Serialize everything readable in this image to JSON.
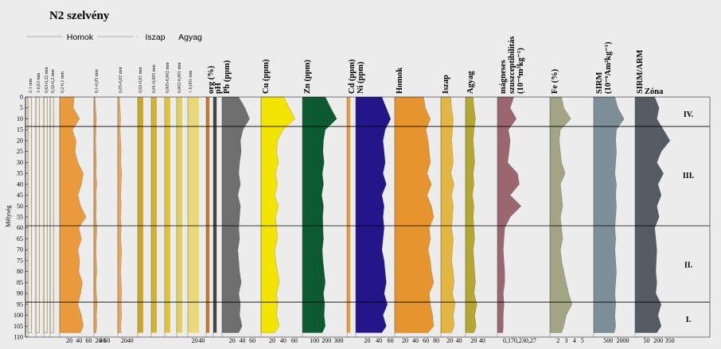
{
  "title": "N2 szelvény",
  "y_axis": {
    "label": "Mélység",
    "min": 0,
    "max": 110,
    "ticks": [
      0,
      5,
      10,
      15,
      20,
      25,
      30,
      35,
      40,
      45,
      50,
      55,
      60,
      65,
      70,
      75,
      80,
      85,
      90,
      95,
      100,
      105,
      110
    ]
  },
  "groups": [
    {
      "label": "Homok",
      "from": 0,
      "to": 6
    },
    {
      "label": "Iszap",
      "from": 7,
      "to": 9
    },
    {
      "label": "Agyag",
      "from": 10,
      "to": 11
    }
  ],
  "columns": [
    {
      "label": "2-1 mm",
      "color": "#f2ead0",
      "outline": "#444",
      "style": "sub"
    },
    {
      "label": "1-0,63 mm",
      "color": "#f2ead0",
      "outline": "#444",
      "style": "sub"
    },
    {
      "label": "0,63-0,32 mm",
      "color": "#f2ead0",
      "outline": "#444",
      "style": "sub"
    },
    {
      "label": "0,32-0,2 mm",
      "color": "#f2ead0",
      "outline": "#444",
      "style": "sub"
    },
    {
      "label": "0,2-0,1 mm",
      "color": "#e89a3c",
      "style": "sub",
      "ticks": [
        "20",
        "40",
        "60"
      ]
    },
    {
      "label": "0,1-0,05 mm",
      "color": "#e6a04e",
      "style": "sub",
      "ticks": [
        "20",
        "40",
        "60"
      ]
    },
    {
      "label": "0,05-0,02 mm",
      "color": "#eaa65a",
      "style": "sub",
      "ticks": [
        "20",
        "40"
      ]
    },
    {
      "label": "0,02-0,01 mm",
      "color": "#c9a628",
      "style": "sub"
    },
    {
      "label": "0,01-0,005 mm",
      "color": "#d2b232",
      "style": "sub"
    },
    {
      "label": "0,005-0,002 mm",
      "color": "#dfc33c",
      "style": "sub"
    },
    {
      "label": "0,002-0,001 mm",
      "color": "#e1cf5c",
      "style": "sub"
    },
    {
      "label": "< 0,001 mm",
      "color": "#e8d878",
      "style": "sub",
      "ticks": [
        "20",
        "40"
      ]
    },
    {
      "label": "org (%)",
      "color": "#c8782a",
      "style": "head"
    },
    {
      "label": "pH",
      "color": "#444444",
      "style": "head"
    },
    {
      "label": "Pb (ppm)",
      "color": "#6e6e6e",
      "style": "head",
      "ticks": [
        "20",
        "40",
        "60"
      ]
    },
    {
      "label": "Cu (ppm)",
      "color": "#f3e400",
      "style": "head",
      "ticks": [
        "20",
        "40",
        "60"
      ]
    },
    {
      "label": "Zn (ppm)",
      "color": "#0e5a30",
      "style": "head",
      "ticks": [
        "100",
        "200",
        "300"
      ]
    },
    {
      "label": "Cd (ppm)",
      "color": "#e89a3c",
      "style": "head"
    },
    {
      "label": "Ni (ppm)",
      "color": "#23158a",
      "style": "head",
      "ticks": [
        "20",
        "40",
        "60"
      ]
    },
    {
      "label": "Homok",
      "color": "#e6942e",
      "style": "head",
      "ticks": [
        "20",
        "40",
        "60",
        "80"
      ]
    },
    {
      "label": "Iszap",
      "color": "#e3b640",
      "style": "head",
      "ticks": [
        "20",
        "40"
      ]
    },
    {
      "label": "Agyag",
      "color": "#b6a730",
      "style": "head",
      "ticks": [
        "20",
        "40"
      ]
    },
    {
      "label": "mágneses szuszceptibilitás (10⁻⁸m³kg⁻¹)",
      "color": "#9a6670",
      "style": "multi",
      "ticks": [
        "0,17",
        "0,23",
        "0,27"
      ]
    },
    {
      "label": "Fe (%)",
      "color": "#a2a484",
      "style": "head",
      "ticks": [
        "2",
        "3",
        "4",
        "5"
      ]
    },
    {
      "label": "SIRM (10⁻⁶Am²kg⁻¹)",
      "color": "#7c8e98",
      "style": "multi",
      "ticks": [
        "500",
        "2000"
      ]
    },
    {
      "label": "SIRM/ARM",
      "color": "#545b62",
      "style": "head",
      "ticks": [
        "50",
        "200",
        "350"
      ]
    }
  ],
  "zone_header": "Zóna",
  "zones": [
    {
      "label": "IV.",
      "depth": 8
    },
    {
      "label": "III.",
      "depth": 36
    },
    {
      "label": "II.",
      "depth": 77
    },
    {
      "label": "I.",
      "depth": 102
    }
  ],
  "zone_boundaries": [
    13.5,
    59,
    94
  ],
  "chart_data": {
    "type": "area",
    "title": "N2 szelvény",
    "ylabel": "Mélység",
    "ylim": [
      0,
      110
    ],
    "y_reversed": true,
    "grid": false,
    "depth": [
      0,
      5,
      10,
      15,
      20,
      25,
      30,
      35,
      40,
      45,
      50,
      55,
      60,
      65,
      70,
      75,
      80,
      85,
      90,
      95,
      100,
      105,
      108
    ],
    "series": [
      {
        "name": "0,2-0,1 mm",
        "values": [
          32,
          30,
          44,
          28,
          36,
          34,
          40,
          52,
          48,
          40,
          46,
          58,
          42,
          48,
          40,
          44,
          42,
          50,
          46,
          40,
          48,
          52,
          46
        ]
      },
      {
        "name": "0,1-0,05 mm",
        "values": [
          6,
          8,
          12,
          10,
          8,
          10,
          12,
          10,
          14,
          10,
          12,
          10,
          14,
          12,
          10,
          12,
          14,
          10,
          12,
          16,
          12,
          14,
          10
        ]
      },
      {
        "name": "0,05-0,02 mm",
        "values": [
          6,
          8,
          10,
          8,
          10,
          12,
          10,
          14,
          12,
          10,
          12,
          10,
          12,
          10,
          14,
          12,
          10,
          12,
          14,
          12,
          14,
          10,
          12
        ]
      },
      {
        "name": "Pb (ppm)",
        "values": [
          40,
          55,
          66,
          50,
          44,
          46,
          42,
          40,
          44,
          38,
          44,
          42,
          40,
          42,
          38,
          40,
          42,
          46,
          40,
          44,
          42,
          48,
          40
        ]
      },
      {
        "name": "Cu (ppm)",
        "values": [
          50,
          62,
          74,
          48,
          36,
          34,
          38,
          32,
          36,
          30,
          38,
          32,
          34,
          36,
          30,
          32,
          36,
          40,
          34,
          36,
          34,
          40,
          30
        ]
      },
      {
        "name": "Zn (ppm)",
        "values": [
          190,
          235,
          285,
          190,
          175,
          170,
          180,
          165,
          175,
          160,
          175,
          168,
          170,
          175,
          165,
          170,
          180,
          190,
          175,
          185,
          180,
          190,
          165
        ]
      },
      {
        "name": "Ni (ppm)",
        "values": [
          48,
          56,
          64,
          54,
          50,
          52,
          54,
          50,
          56,
          48,
          52,
          50,
          52,
          50,
          48,
          52,
          54,
          56,
          52,
          58,
          50,
          56,
          48
        ]
      },
      {
        "name": "Homok",
        "values": [
          52,
          55,
          64,
          56,
          60,
          62,
          64,
          58,
          66,
          58,
          66,
          70,
          62,
          64,
          60,
          64,
          66,
          70,
          62,
          64,
          68,
          70,
          60
        ]
      },
      {
        "name": "Iszap",
        "values": [
          24,
          26,
          30,
          28,
          26,
          28,
          30,
          24,
          32,
          26,
          30,
          28,
          26,
          30,
          28,
          26,
          30,
          32,
          28,
          34,
          30,
          32,
          26
        ]
      },
      {
        "name": "Agyag",
        "values": [
          20,
          22,
          26,
          22,
          20,
          22,
          24,
          20,
          22,
          18,
          22,
          20,
          22,
          24,
          20,
          22,
          24,
          26,
          22,
          30,
          24,
          28,
          22
        ]
      },
      {
        "name": "mágneses szuszceptibilitás",
        "values": [
          0.215,
          0.205,
          0.222,
          0.2,
          0.205,
          0.202,
          0.198,
          0.225,
          0.23,
          0.205,
          0.235,
          0.205,
          0.19,
          0.188,
          0.186,
          0.188,
          0.19,
          0.19,
          0.186,
          0.188,
          0.186,
          0.186,
          0.185
        ]
      },
      {
        "name": "Fe (%)",
        "values": [
          3.0,
          3.2,
          3.8,
          2.9,
          2.8,
          2.9,
          3.0,
          3.3,
          2.9,
          3.0,
          3.1,
          2.9,
          3.0,
          3.1,
          2.9,
          3.0,
          3.2,
          3.4,
          3.6,
          3.9,
          3.4,
          3.2,
          3.0
        ]
      },
      {
        "name": "SIRM",
        "values": [
          1600,
          1800,
          2200,
          1700,
          1650,
          1700,
          1650,
          1600,
          1700,
          1650,
          1700,
          1650,
          1600,
          1650,
          1600,
          1650,
          1700,
          1650,
          1600,
          1650,
          1600,
          1650,
          1550
        ]
      },
      {
        "name": "SIRM/ARM",
        "values": [
          180,
          220,
          200,
          260,
          320,
          240,
          200,
          260,
          210,
          240,
          200,
          220,
          180,
          190,
          200,
          195,
          190,
          200,
          190,
          240,
          210,
          240,
          200
        ]
      }
    ]
  }
}
